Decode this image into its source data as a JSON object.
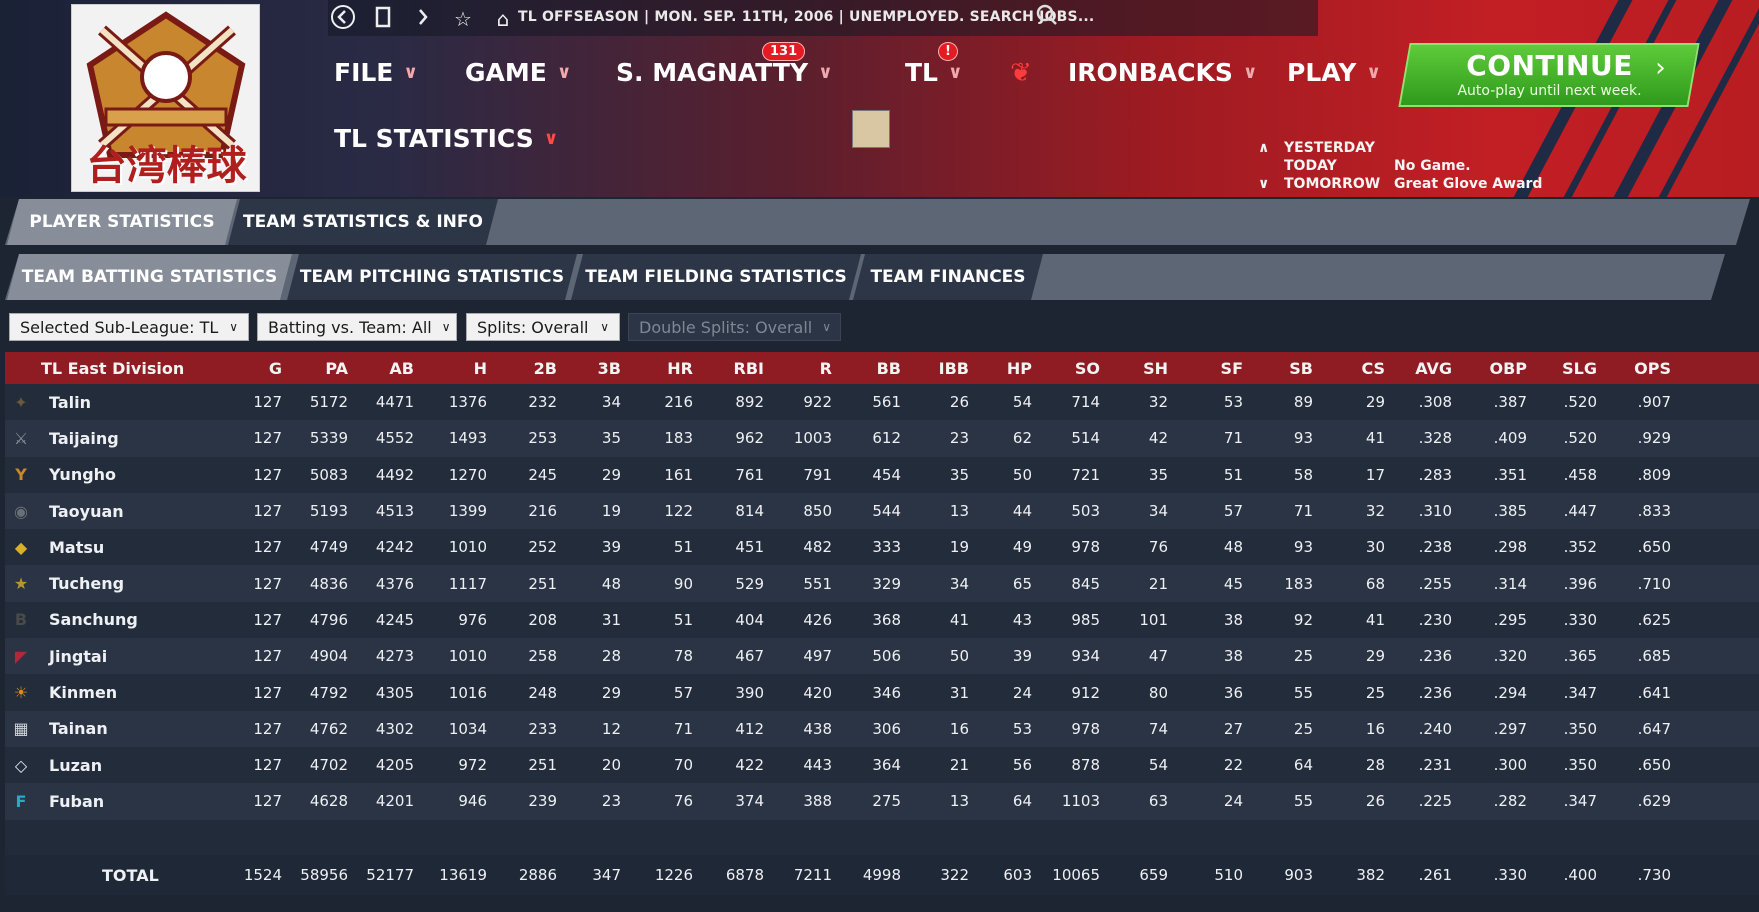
{
  "header": {
    "breadcrumb": "TL OFFSEASON  |  MON. SEP. 11TH, 2006  |  UNEMPLOYED. SEARCH JOBS...",
    "nav_icons": [
      "back-icon",
      "bookmark-icon",
      "forward-icon",
      "star-icon",
      "home-icon"
    ],
    "menu": {
      "file": "FILE",
      "game": "GAME",
      "manager": "S. MAGNATTY",
      "manager_badge": "131",
      "league": "TL",
      "league_badge": "!",
      "team": "IRONBACKS",
      "play": "PLAY",
      "section": "TL STATISTICS"
    },
    "logo_text": "台湾棒球",
    "continue": {
      "title": "CONTINUE",
      "subtitle": "Auto-play until next week."
    },
    "schedule": {
      "yesterday": "YESTERDAY",
      "today": "TODAY",
      "tomorrow": "TOMORROW",
      "today_value": "No Game.",
      "tomorrow_value": "Great Glove Award"
    }
  },
  "tabs": {
    "main": [
      "PLAYER STATISTICS",
      "TEAM STATISTICS & INFO"
    ],
    "sub": [
      "TEAM BATTING STATISTICS",
      "TEAM PITCHING STATISTICS",
      "TEAM FIELDING STATISTICS",
      "TEAM FINANCES"
    ]
  },
  "filters": {
    "subleague": "Selected Sub-League: TL",
    "vs_team": "Batting vs. Team: All",
    "splits": "Splits: Overall",
    "double_splits": "Double Splits: Overall"
  },
  "table": {
    "division": "TL East Division",
    "columns": [
      "G",
      "PA",
      "AB",
      "H",
      "2B",
      "3B",
      "HR",
      "RBI",
      "R",
      "BB",
      "IBB",
      "HP",
      "SO",
      "SH",
      "SF",
      "SB",
      "CS",
      "AVG",
      "OBP",
      "SLG",
      "OPS"
    ],
    "rows": [
      {
        "team": "Talin",
        "color": "#6b5a3a",
        "icon": "✦",
        "values": [
          "127",
          "5172",
          "4471",
          "1376",
          "232",
          "34",
          "216",
          "892",
          "922",
          "561",
          "26",
          "54",
          "714",
          "32",
          "53",
          "89",
          "29",
          ".308",
          ".387",
          ".520",
          ".907"
        ]
      },
      {
        "team": "Taijaing",
        "color": "#8a8f9a",
        "icon": "⚔",
        "values": [
          "127",
          "5339",
          "4552",
          "1493",
          "253",
          "35",
          "183",
          "962",
          "1003",
          "612",
          "23",
          "62",
          "514",
          "42",
          "71",
          "93",
          "41",
          ".328",
          ".409",
          ".520",
          ".929"
        ]
      },
      {
        "team": "Yungho",
        "color": "#c9882a",
        "icon": "Y",
        "values": [
          "127",
          "5083",
          "4492",
          "1270",
          "245",
          "29",
          "161",
          "761",
          "791",
          "454",
          "35",
          "50",
          "721",
          "35",
          "51",
          "58",
          "17",
          ".283",
          ".351",
          ".458",
          ".809"
        ]
      },
      {
        "team": "Taoyuan",
        "color": "#6b6f78",
        "icon": "◉",
        "values": [
          "127",
          "5193",
          "4513",
          "1399",
          "216",
          "19",
          "122",
          "814",
          "850",
          "544",
          "13",
          "44",
          "503",
          "34",
          "57",
          "71",
          "32",
          ".310",
          ".385",
          ".447",
          ".833"
        ]
      },
      {
        "team": "Matsu",
        "color": "#d9b02a",
        "icon": "◆",
        "values": [
          "127",
          "4749",
          "4242",
          "1010",
          "252",
          "39",
          "51",
          "451",
          "482",
          "333",
          "19",
          "49",
          "978",
          "76",
          "48",
          "93",
          "30",
          ".238",
          ".298",
          ".352",
          ".650"
        ]
      },
      {
        "team": "Tucheng",
        "color": "#b8962e",
        "icon": "★",
        "values": [
          "127",
          "4836",
          "4376",
          "1117",
          "251",
          "48",
          "90",
          "529",
          "551",
          "329",
          "34",
          "65",
          "845",
          "21",
          "45",
          "183",
          "68",
          ".255",
          ".314",
          ".396",
          ".710"
        ]
      },
      {
        "team": "Sanchung",
        "color": "#4a4a4a",
        "icon": "B",
        "values": [
          "127",
          "4796",
          "4245",
          "976",
          "208",
          "31",
          "51",
          "404",
          "426",
          "368",
          "41",
          "43",
          "985",
          "101",
          "38",
          "92",
          "41",
          ".230",
          ".295",
          ".330",
          ".625"
        ]
      },
      {
        "team": "Jingtai",
        "color": "#b0283a",
        "icon": "◤",
        "values": [
          "127",
          "4904",
          "4273",
          "1010",
          "258",
          "28",
          "78",
          "467",
          "497",
          "506",
          "50",
          "39",
          "934",
          "47",
          "38",
          "25",
          "29",
          ".236",
          ".320",
          ".365",
          ".685"
        ]
      },
      {
        "team": "Kinmen",
        "color": "#d98a1c",
        "icon": "☀",
        "values": [
          "127",
          "4792",
          "4305",
          "1016",
          "248",
          "29",
          "57",
          "390",
          "420",
          "346",
          "31",
          "24",
          "912",
          "80",
          "36",
          "55",
          "25",
          ".236",
          ".294",
          ".347",
          ".641"
        ]
      },
      {
        "team": "Tainan",
        "color": "#cfd3d9",
        "icon": "▦",
        "values": [
          "127",
          "4762",
          "4302",
          "1034",
          "233",
          "12",
          "71",
          "412",
          "438",
          "306",
          "16",
          "53",
          "978",
          "74",
          "27",
          "25",
          "16",
          ".240",
          ".297",
          ".350",
          ".647"
        ]
      },
      {
        "team": "Luzan",
        "color": "#dfe6ee",
        "icon": "◇",
        "values": [
          "127",
          "4702",
          "4205",
          "972",
          "251",
          "20",
          "70",
          "422",
          "443",
          "364",
          "21",
          "56",
          "878",
          "54",
          "22",
          "64",
          "28",
          ".231",
          ".300",
          ".350",
          ".650"
        ]
      },
      {
        "team": "Fuban",
        "color": "#2aa7c9",
        "icon": "F",
        "values": [
          "127",
          "4628",
          "4201",
          "946",
          "239",
          "23",
          "76",
          "374",
          "388",
          "275",
          "13",
          "64",
          "1103",
          "63",
          "24",
          "55",
          "26",
          ".225",
          ".282",
          ".347",
          ".629"
        ]
      }
    ],
    "total": {
      "label": "TOTAL",
      "values": [
        "1524",
        "58956",
        "52177",
        "13619",
        "2886",
        "347",
        "1226",
        "6878",
        "7211",
        "4998",
        "322",
        "603",
        "10065",
        "659",
        "510",
        "903",
        "382",
        ".261",
        ".330",
        ".400",
        ".730"
      ]
    }
  }
}
